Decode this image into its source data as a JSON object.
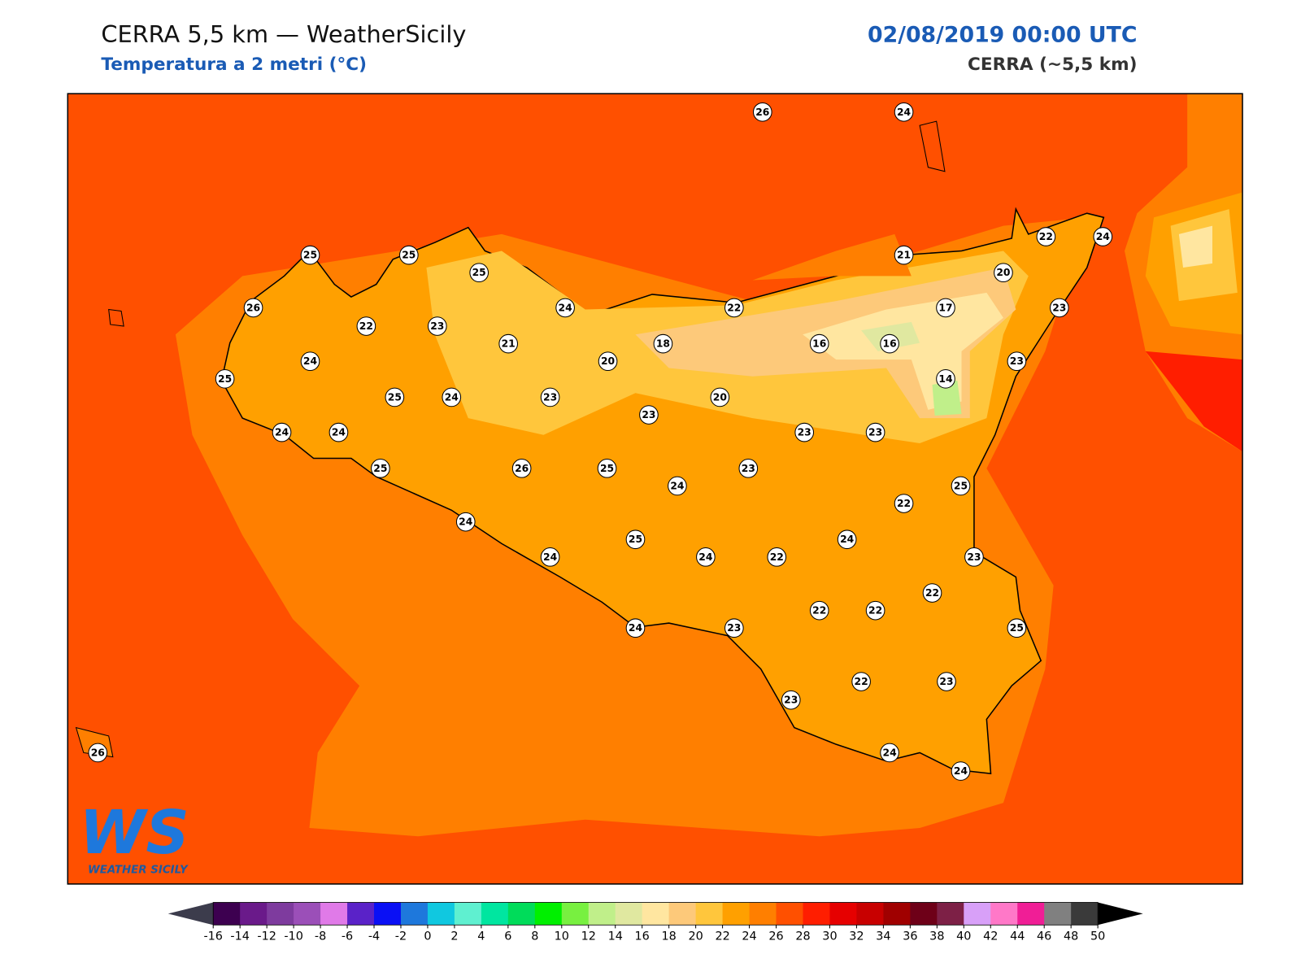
{
  "header": {
    "title": "CERRA 5,5 km — WeatherSicily",
    "subtitle": "Temperatura a 2 metri (°C)",
    "datetime": "02/08/2019 00:00 UTC",
    "model": "CERRA (~5,5 km)"
  },
  "logo": {
    "letters": "WS",
    "name": "WEATHER SICILY"
  },
  "stations": [
    26,
    24,
    25,
    25,
    25,
    26,
    22,
    23,
    24,
    22,
    21,
    22,
    24,
    20,
    17,
    23,
    21,
    24,
    20,
    18,
    16,
    16,
    23,
    14,
    25,
    25,
    24,
    23,
    20,
    23,
    24,
    24,
    23,
    23,
    25,
    26,
    25,
    23,
    24,
    25,
    22,
    24,
    25,
    24,
    24,
    24,
    22,
    23,
    22,
    22,
    22,
    24,
    23,
    25,
    22,
    23,
    23,
    24,
    24,
    26
  ],
  "colorbar": {
    "ticks": [
      -16,
      -14,
      -12,
      -10,
      -8,
      -6,
      -4,
      -2,
      0,
      2,
      4,
      6,
      8,
      10,
      12,
      14,
      16,
      18,
      20,
      22,
      24,
      26,
      28,
      30,
      32,
      34,
      36,
      38,
      40,
      42,
      44,
      46,
      48,
      50
    ],
    "colors": [
      "#3d0050",
      "#6a1a8a",
      "#7e3b9e",
      "#9b4fb8",
      "#e07ae8",
      "#5a22c8",
      "#0a10f5",
      "#1e78dc",
      "#10c8e0",
      "#5ff0d0",
      "#00e6a0",
      "#00dc5a",
      "#00f000",
      "#78f040",
      "#c0ef8a",
      "#e0e8a0",
      "#ffe6a0",
      "#fdc97a",
      "#ffc63c",
      "#ffa000",
      "#ff7f00",
      "#ff5000",
      "#ff1e00",
      "#e60000",
      "#c80000",
      "#a00000",
      "#6e0018",
      "#7d2046",
      "#d8a0f8",
      "#ff78c8",
      "#f01e96",
      "#808080",
      "#3a3a3a"
    ],
    "under_color": "#3c3c4c",
    "over_color": "#000000"
  }
}
